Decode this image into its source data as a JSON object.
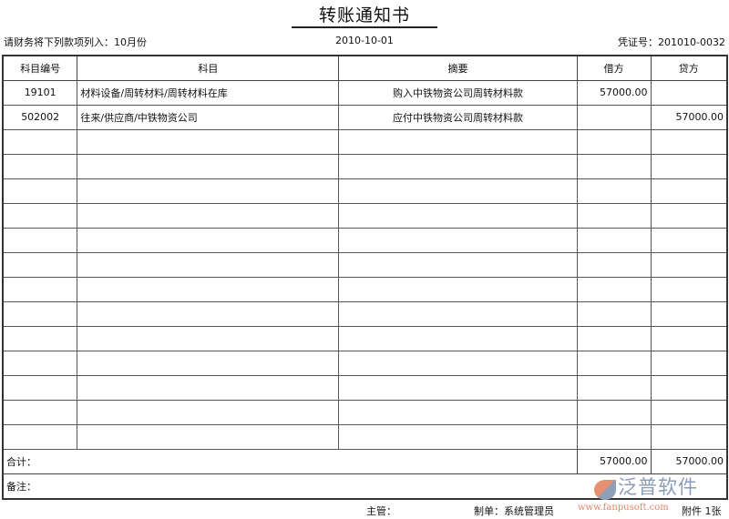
{
  "title": "转账通知书",
  "header": {
    "instruction": "请财务将下列款项列入：10月份",
    "date": "2010-10-01",
    "voucher": "凭证号：201010-0032"
  },
  "columns": [
    "科目编号",
    "科目",
    "摘要",
    "借方",
    "贷方"
  ],
  "rows": [
    {
      "code": "19101",
      "account": "材料设备/周转材料/周转材料在库",
      "summary": "购入中铁物资公司周转材料款",
      "debit": "57000.00",
      "credit": ""
    },
    {
      "code": "502002",
      "account": "往来/供应商/中铁物资公司",
      "summary": "应付中铁物资公司周转材料款",
      "debit": "",
      "credit": "57000.00"
    }
  ],
  "empty_rows": 13,
  "totals": {
    "label": "合计：",
    "debit": "57000.00",
    "credit": "57000.00"
  },
  "remark": {
    "label": "备注："
  },
  "footer": {
    "supervisor": "主管：",
    "maker": "制单：系统管理员",
    "attachments": "附件 1张"
  },
  "logo": {
    "text": "泛普软件",
    "url": "www.fanpusoft.com"
  }
}
